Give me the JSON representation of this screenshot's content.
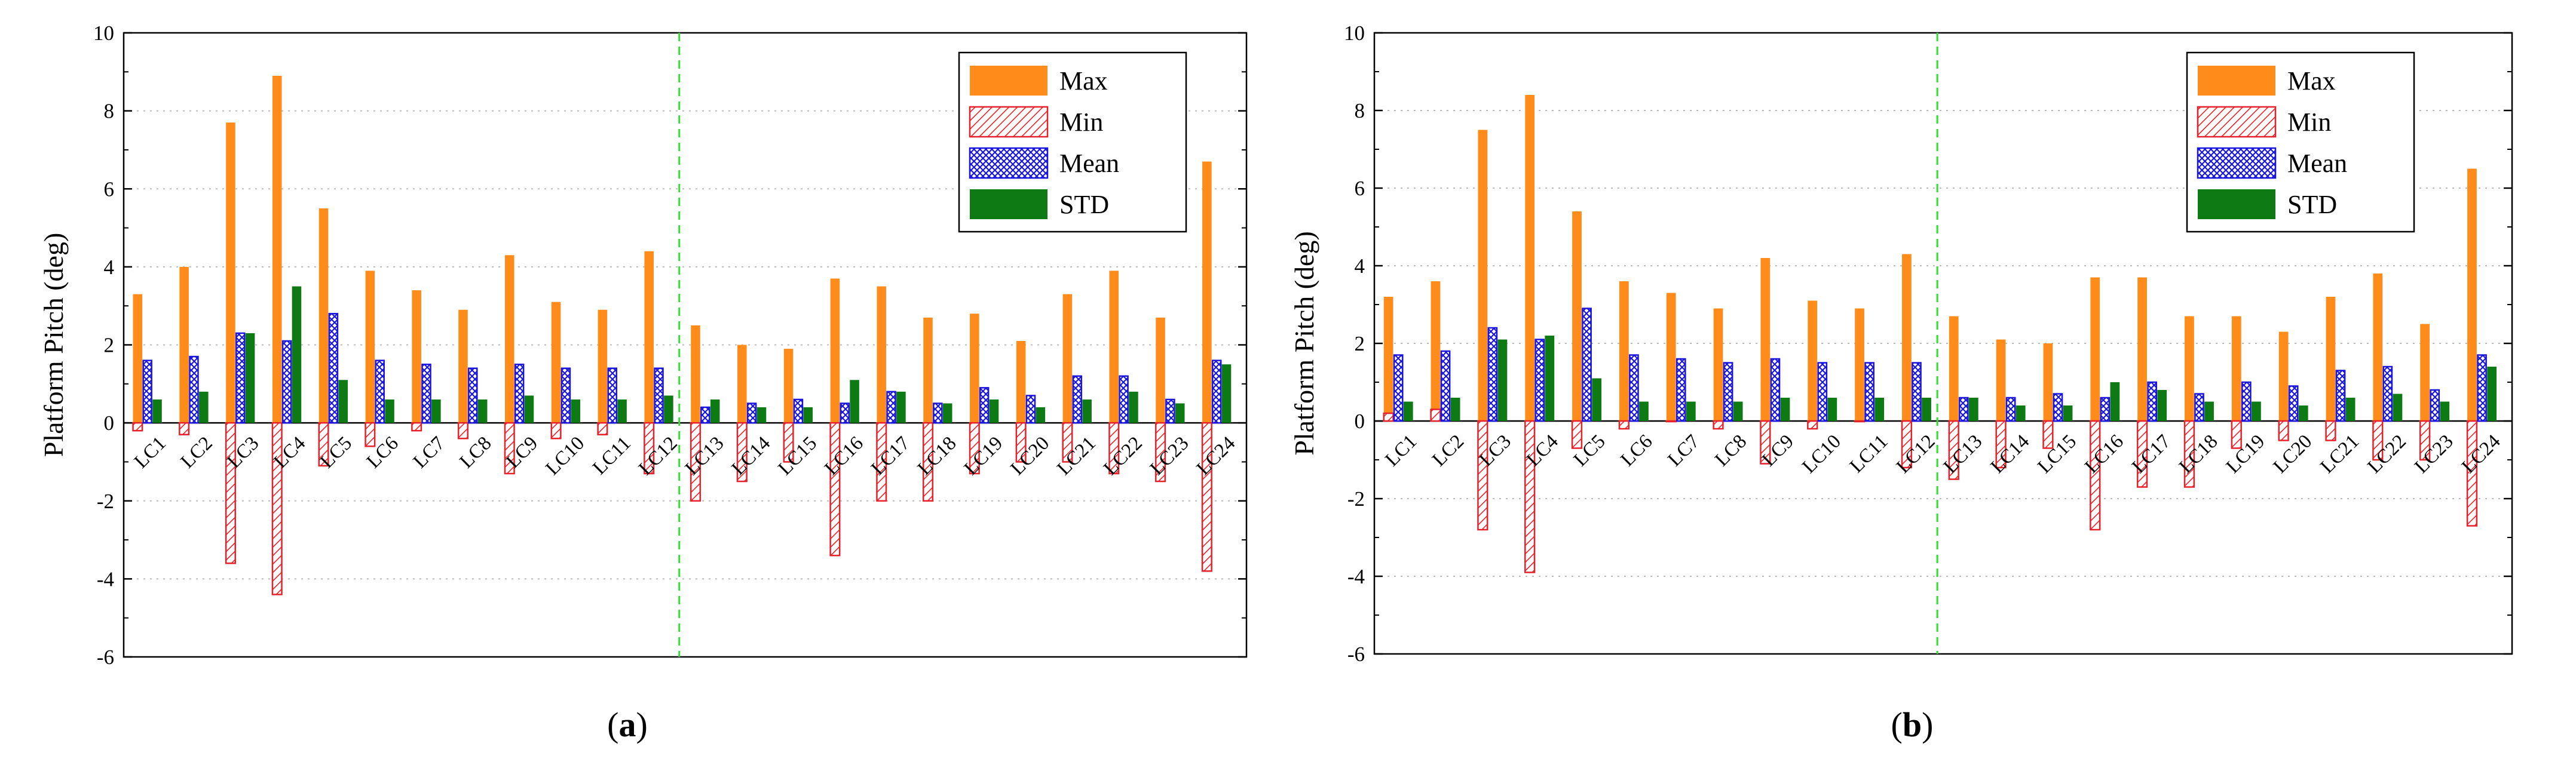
{
  "chart_data": [
    {
      "panel": "a",
      "type": "bar",
      "ylabel": "Platform Pitch (deg)",
      "ylim": [
        -6,
        10
      ],
      "yticks": [
        -6,
        -4,
        -2,
        0,
        2,
        4,
        6,
        8,
        10
      ],
      "grid": true,
      "legend_position": "top-right",
      "divider_after_category": "LC12",
      "categories": [
        "LC1",
        "LC2",
        "LC3",
        "LC4",
        "LC5",
        "LC6",
        "LC7",
        "LC8",
        "LC9",
        "LC10",
        "LC11",
        "LC12",
        "LC13",
        "LC14",
        "LC15",
        "LC16",
        "LC17",
        "LC18",
        "LC19",
        "LC20",
        "LC21",
        "LC22",
        "LC23",
        "LC24"
      ],
      "series": [
        {
          "name": "Max",
          "values": [
            3.3,
            4.0,
            7.7,
            8.9,
            5.5,
            3.9,
            3.4,
            2.9,
            4.3,
            3.1,
            2.9,
            4.4,
            2.5,
            2.0,
            1.9,
            3.7,
            3.5,
            2.7,
            2.8,
            2.1,
            3.3,
            3.9,
            2.7,
            6.7
          ]
        },
        {
          "name": "Min",
          "values": [
            -0.2,
            -0.3,
            -3.6,
            -4.4,
            -1.1,
            -0.6,
            -0.2,
            -0.4,
            -1.3,
            -0.4,
            -0.3,
            -1.3,
            -2.0,
            -1.5,
            -1.0,
            -3.4,
            -2.0,
            -2.0,
            -1.3,
            -1.0,
            -1.0,
            -1.3,
            -1.5,
            -3.8
          ]
        },
        {
          "name": "Mean",
          "values": [
            1.6,
            1.7,
            2.3,
            2.1,
            2.8,
            1.6,
            1.5,
            1.4,
            1.5,
            1.4,
            1.4,
            1.4,
            0.4,
            0.5,
            0.6,
            0.5,
            0.8,
            0.5,
            0.9,
            0.7,
            1.2,
            1.2,
            0.6,
            1.6
          ]
        },
        {
          "name": "STD",
          "values": [
            0.6,
            0.8,
            2.3,
            3.5,
            1.1,
            0.6,
            0.6,
            0.6,
            0.7,
            0.6,
            0.6,
            0.7,
            0.6,
            0.4,
            0.4,
            1.1,
            0.8,
            0.5,
            0.6,
            0.4,
            0.6,
            0.8,
            0.5,
            1.5
          ]
        }
      ],
      "panel_label": "a"
    },
    {
      "panel": "b",
      "type": "bar",
      "ylabel": "Platform Pitch (deg)",
      "ylim": [
        -6,
        10
      ],
      "yticks": [
        -6,
        -4,
        -2,
        0,
        2,
        4,
        6,
        8,
        10
      ],
      "grid": true,
      "legend_position": "top-right",
      "divider_after_category": "LC12",
      "categories": [
        "LC1",
        "LC2",
        "LC3",
        "LC4",
        "LC5",
        "LC6",
        "LC7",
        "LC8",
        "LC9",
        "LC10",
        "LC11",
        "LC12",
        "LC13",
        "LC14",
        "LC15",
        "LC16",
        "LC17",
        "LC18",
        "LC19",
        "LC20",
        "LC21",
        "LC22",
        "LC23",
        "LC24"
      ],
      "series": [
        {
          "name": "Max",
          "values": [
            3.2,
            3.6,
            7.5,
            8.4,
            5.4,
            3.6,
            3.3,
            2.9,
            4.2,
            3.1,
            2.9,
            4.3,
            2.7,
            2.1,
            2.0,
            3.7,
            3.7,
            2.7,
            2.7,
            2.3,
            3.2,
            3.8,
            2.5,
            6.5
          ]
        },
        {
          "name": "Min",
          "values": [
            0.2,
            0.3,
            -2.8,
            -3.9,
            -0.7,
            -0.2,
            0.0,
            -0.2,
            -1.1,
            -0.2,
            0.0,
            -1.2,
            -1.5,
            -1.2,
            -0.7,
            -2.8,
            -1.7,
            -1.7,
            -0.7,
            -0.5,
            -0.5,
            -1.0,
            -1.0,
            -2.7
          ]
        },
        {
          "name": "Mean",
          "values": [
            1.7,
            1.8,
            2.4,
            2.1,
            2.9,
            1.7,
            1.6,
            1.5,
            1.6,
            1.5,
            1.5,
            1.5,
            0.6,
            0.6,
            0.7,
            0.6,
            1.0,
            0.7,
            1.0,
            0.9,
            1.3,
            1.4,
            0.8,
            1.7
          ]
        },
        {
          "name": "STD",
          "values": [
            0.5,
            0.6,
            2.1,
            2.2,
            1.1,
            0.5,
            0.5,
            0.5,
            0.6,
            0.6,
            0.6,
            0.6,
            0.6,
            0.4,
            0.4,
            1.0,
            0.8,
            0.5,
            0.5,
            0.4,
            0.6,
            0.7,
            0.5,
            1.4
          ]
        }
      ],
      "panel_label": "b"
    }
  ],
  "colors": {
    "Max": "#FF8C1A",
    "Min": "#E8202A",
    "Mean": "#1A14E0",
    "STD": "#0E7A14",
    "divider": "#33DD33",
    "grid": "#BBBBBB"
  }
}
